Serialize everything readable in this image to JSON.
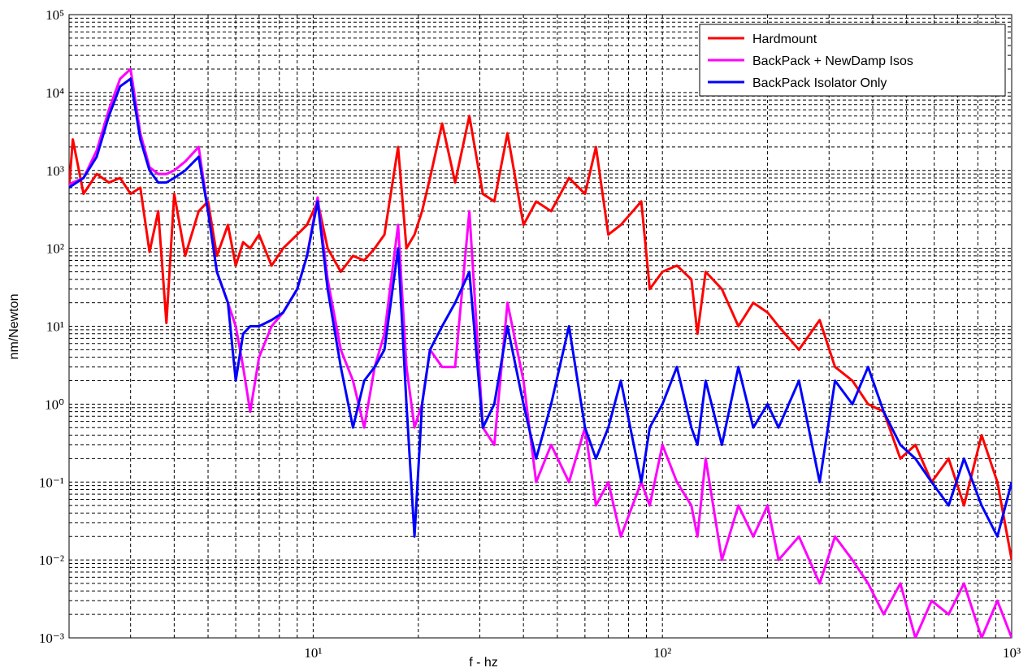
{
  "chart_data": {
    "type": "line",
    "x_label": "f - hz",
    "y_label": "nm/Newton",
    "log_x": true,
    "log_y": true,
    "grid": true,
    "minor_grid": true,
    "legend_position": "upper-right",
    "xlim": [
      2,
      1000
    ],
    "ylim": [
      0.001,
      100000
    ],
    "xticks": [
      {
        "value": 10,
        "label": "10¹"
      },
      {
        "value": 100,
        "label": "10²"
      },
      {
        "value": 1000,
        "label": "10³"
      }
    ],
    "yticks": [
      {
        "value": 0.001,
        "label": "10⁻³"
      },
      {
        "value": 0.01,
        "label": "10⁻²"
      },
      {
        "value": 0.1,
        "label": "10⁻¹"
      },
      {
        "value": 1,
        "label": "10⁰"
      },
      {
        "value": 10,
        "label": "10¹"
      },
      {
        "value": 100,
        "label": "10²"
      },
      {
        "value": 1000,
        "label": "10³"
      },
      {
        "value": 10000,
        "label": "10⁴"
      },
      {
        "value": 100000,
        "label": "10⁵"
      }
    ],
    "x": [
      2,
      2.05,
      2.2,
      2.4,
      2.6,
      2.8,
      3.0,
      3.2,
      3.4,
      3.6,
      3.8,
      4.0,
      4.3,
      4.7,
      5.0,
      5.3,
      5.7,
      6.0,
      6.3,
      6.6,
      7.0,
      7.6,
      8.2,
      9.0,
      9.6,
      10.3,
      11,
      12,
      13,
      14,
      15,
      16,
      17.5,
      18.5,
      19.5,
      20.5,
      21.6,
      23.4,
      25.5,
      28,
      30.6,
      33,
      36,
      40,
      43.5,
      48,
      54,
      60,
      64.5,
      70,
      76,
      87,
      92,
      100,
      110,
      121,
      126,
      133,
      148,
      165,
      182,
      200,
      215,
      246,
      282,
      312,
      350,
      388,
      430,
      480,
      530,
      590,
      660,
      730,
      820,
      910,
      1000
    ],
    "series": [
      {
        "name": "Hardmount",
        "color": "#ff0000",
        "values": [
          600,
          2500,
          500,
          900,
          700,
          800,
          500,
          600,
          90,
          300,
          11,
          500,
          80,
          300,
          400,
          80,
          200,
          60,
          120,
          100,
          150,
          60,
          100,
          150,
          200,
          400,
          100,
          50,
          80,
          70,
          100,
          150,
          2000,
          100,
          150,
          300,
          800,
          4000,
          700,
          5000,
          500,
          400,
          3000,
          200,
          400,
          300,
          800,
          500,
          2000,
          150,
          200,
          400,
          30,
          50,
          60,
          40,
          8,
          50,
          30,
          10,
          20,
          15,
          10,
          5,
          12,
          3,
          2,
          1,
          0.8,
          0.2,
          0.3,
          0.1,
          0.2,
          0.05,
          0.4,
          0.1,
          0.01
        ]
      },
      {
        "name": "BackPack + NewDamp Isos",
        "color": "#ff00ff",
        "values": [
          650,
          700,
          800,
          1800,
          6000,
          15000,
          20000,
          3000,
          1100,
          900,
          900,
          1000,
          1300,
          2000,
          300,
          50,
          20,
          10,
          3,
          0.8,
          4,
          10,
          15,
          30,
          80,
          450,
          40,
          5,
          2,
          0.5,
          3,
          8,
          200,
          3,
          0.5,
          1,
          5,
          3,
          3,
          300,
          0.5,
          0.3,
          20,
          2,
          0.1,
          0.3,
          0.1,
          0.5,
          0.05,
          0.1,
          0.02,
          0.1,
          0.05,
          0.3,
          0.1,
          0.05,
          0.02,
          0.2,
          0.01,
          0.05,
          0.02,
          0.05,
          0.01,
          0.02,
          0.005,
          0.02,
          0.01,
          0.005,
          0.002,
          0.005,
          0.001,
          0.003,
          0.002,
          0.005,
          0.001,
          0.003,
          0.001
        ]
      },
      {
        "name": "BackPack Isolator Only",
        "color": "#0000ff",
        "values": [
          600,
          650,
          800,
          1500,
          5000,
          12000,
          15000,
          2500,
          1000,
          700,
          700,
          800,
          1000,
          1500,
          300,
          50,
          20,
          2,
          8,
          10,
          10,
          12,
          15,
          30,
          80,
          400,
          30,
          3,
          0.5,
          2,
          3,
          5,
          100,
          1,
          0.02,
          1,
          5,
          10,
          20,
          50,
          0.5,
          1,
          10,
          1,
          0.2,
          1,
          10,
          0.5,
          0.2,
          0.5,
          2,
          0.1,
          0.5,
          1,
          3,
          0.5,
          0.3,
          2,
          0.3,
          3,
          0.5,
          1,
          0.5,
          2,
          0.1,
          2,
          1,
          3,
          0.8,
          0.3,
          0.2,
          0.1,
          0.05,
          0.2,
          0.05,
          0.02,
          0.1
        ]
      }
    ]
  }
}
